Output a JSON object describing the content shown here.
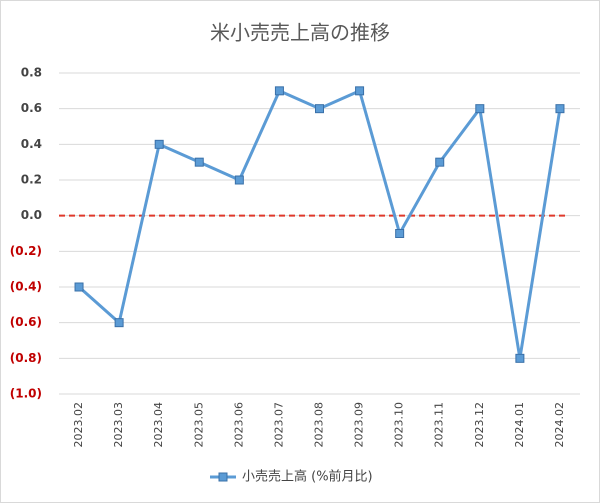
{
  "chart_data": {
    "type": "line",
    "title": "米小売売上高の推移",
    "categories": [
      "2023.02",
      "2023.03",
      "2023.04",
      "2023.05",
      "2023.06",
      "2023.07",
      "2023.08",
      "2023.09",
      "2023.10",
      "2023.11",
      "2023.12",
      "2024.01",
      "2024.02"
    ],
    "series": [
      {
        "name": "小売売上高 (%前月比)",
        "color": "#5b9bd5",
        "values": [
          -0.4,
          -0.6,
          0.4,
          0.3,
          0.2,
          0.7,
          0.6,
          0.7,
          -0.1,
          0.3,
          0.6,
          -0.8,
          0.6
        ]
      }
    ],
    "ylim": [
      -1.0,
      0.8
    ],
    "yticks": [
      0.8,
      0.6,
      0.4,
      0.2,
      {
        "value": 0,
        "label": "0.0"
      },
      {
        "value": -0.2,
        "label": "(0.2)"
      },
      {
        "value": -0.4,
        "label": "(0.4)"
      },
      {
        "value": -0.6,
        "label": "(0.6)"
      },
      {
        "value": -0.8,
        "label": "(0.8)"
      },
      {
        "value": -1.0,
        "label": "(1.0)"
      }
    ],
    "grid": true,
    "negative_tick_color": "#c00000",
    "zero_line_color": "#e0392b",
    "legend": "bottom"
  }
}
